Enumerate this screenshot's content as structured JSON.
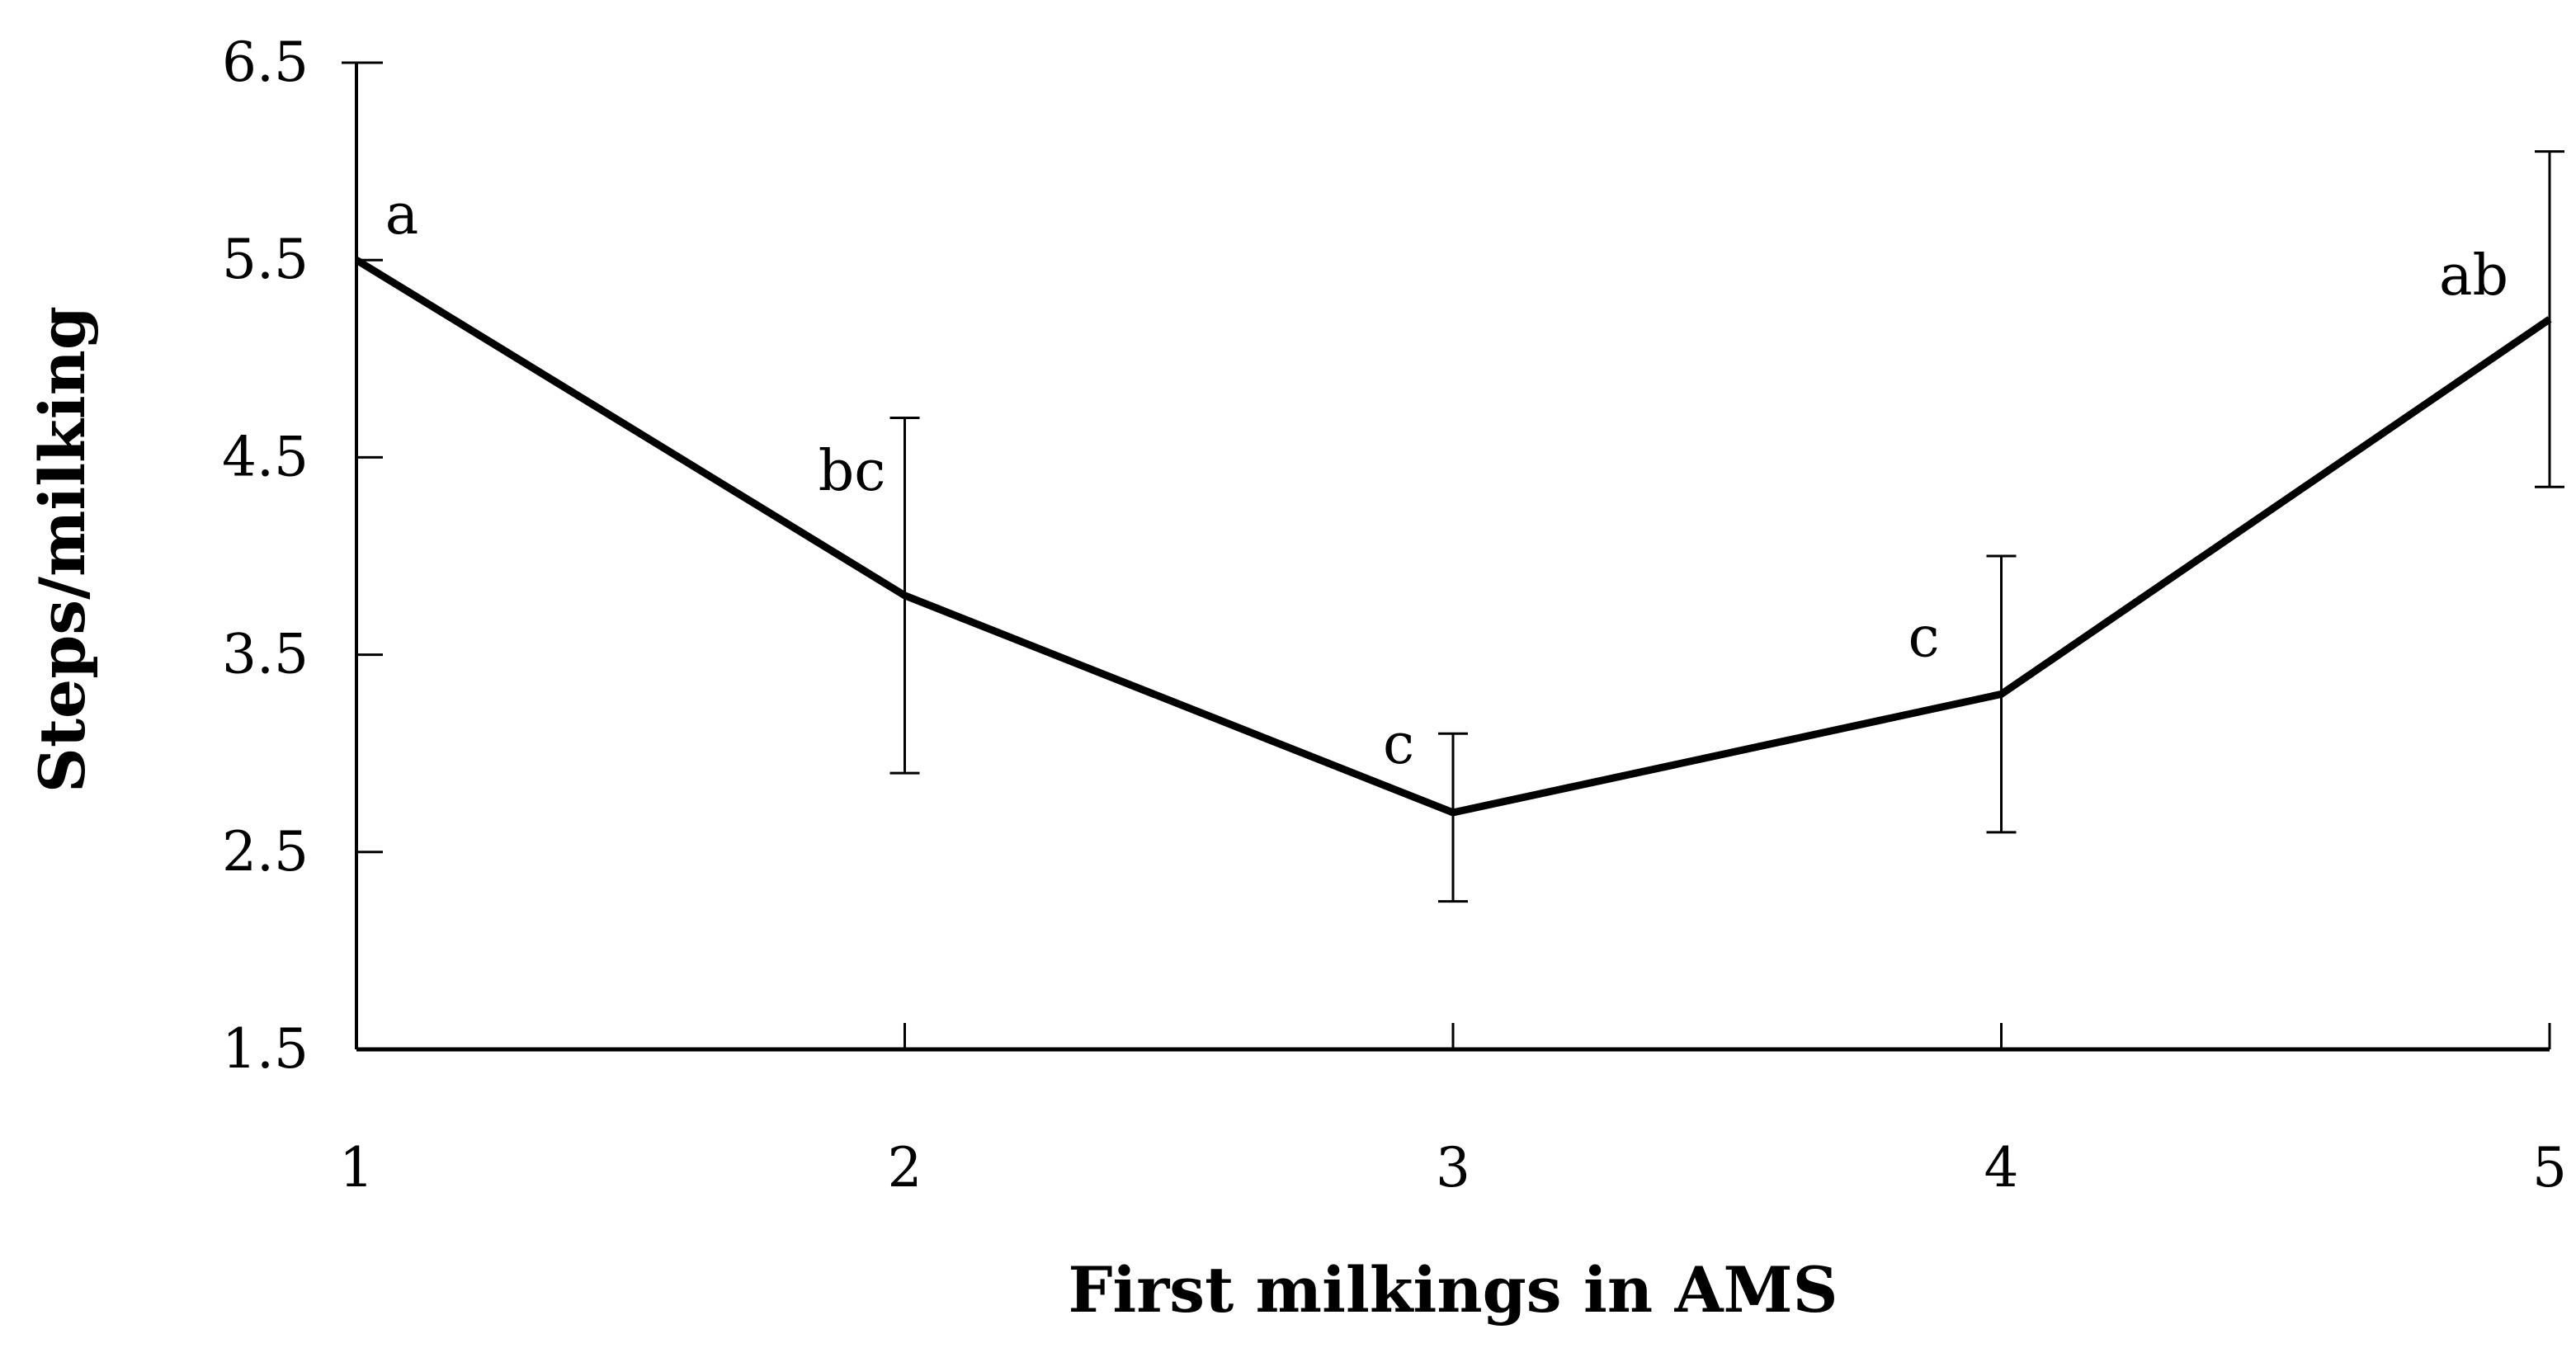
{
  "chart_data": {
    "type": "line",
    "xlabel": "First milkings in AMS",
    "ylabel": "Steps/milking",
    "x": [
      1,
      2,
      3,
      4,
      5
    ],
    "x_tick_labels": [
      "1",
      "2",
      "3",
      "4",
      "5"
    ],
    "y_tick_labels": [
      "1.5",
      "2.5",
      "3.5",
      "4.5",
      "5.5",
      "6.5"
    ],
    "y_ticks": [
      1.5,
      2.5,
      3.5,
      4.5,
      5.5,
      6.5
    ],
    "xlim": [
      1,
      5
    ],
    "ylim": [
      1.5,
      6.5
    ],
    "grid": false,
    "series": [
      {
        "values": [
          5.5,
          3.8,
          2.7,
          3.3,
          5.2
        ],
        "error_low": [
          null,
          2.9,
          2.25,
          2.6,
          4.35
        ],
        "error_high": [
          6.5,
          4.7,
          3.1,
          4.0,
          6.05
        ],
        "significance_labels": [
          "a",
          "bc",
          "c",
          "c",
          "ab"
        ],
        "color": "#000000"
      }
    ]
  }
}
